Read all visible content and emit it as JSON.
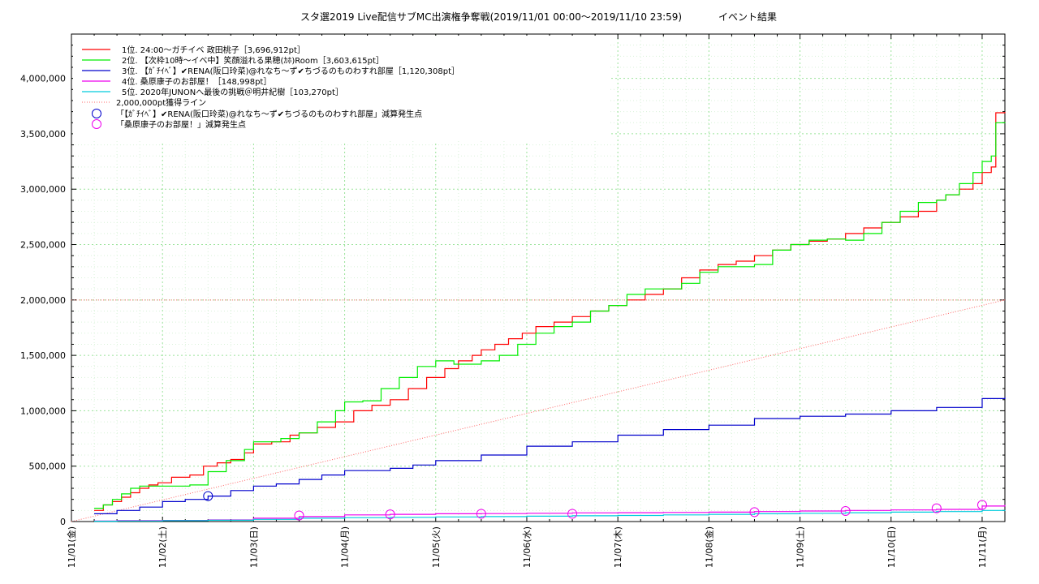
{
  "chart_data": {
    "type": "line",
    "title": "スタ選2019 Live配信サブMC出演権争奪戦(2019/11/01 00:00～2019/11/10 23:59)",
    "subtitle": "イベント結果",
    "x_tick_labels": [
      "11/01(金)",
      "11/02(土)",
      "11/03(日)",
      "11/04(月)",
      "11/05(火)",
      "11/06(水)",
      "11/07(木)",
      "11/08(金)",
      "11/09(土)",
      "11/10(日)",
      "11/11(月)"
    ],
    "xlim": [
      0,
      10.25
    ],
    "ylim": [
      0,
      4400000
    ],
    "y_ticks": [
      0,
      500000,
      1000000,
      1500000,
      2000000,
      2500000,
      3000000,
      3500000,
      4000000
    ],
    "y_tick_labels": [
      "0",
      "500,000",
      "1,000,000",
      "1,500,000",
      "2,000,000",
      "2,500,000",
      "3,000,000",
      "3,500,000",
      "4,000,000"
    ],
    "grid": true,
    "legend_position": "top-left",
    "series": [
      {
        "name": "1位. 24:00～ガチイベ 政田桃子［3,696,912pt］",
        "color": "#ff0000",
        "x": [
          0.25,
          0.35,
          0.45,
          0.55,
          0.65,
          0.75,
          0.85,
          0.95,
          1.1,
          1.3,
          1.45,
          1.6,
          1.75,
          1.9,
          2.0,
          2.2,
          2.4,
          2.5,
          2.7,
          2.9,
          3.1,
          3.3,
          3.5,
          3.7,
          3.9,
          4.1,
          4.25,
          4.4,
          4.5,
          4.65,
          4.8,
          4.95,
          5.1,
          5.3,
          5.5,
          5.7,
          5.9,
          6.1,
          6.3,
          6.5,
          6.7,
          6.9,
          7.1,
          7.3,
          7.5,
          7.7,
          7.9,
          8.1,
          8.3,
          8.5,
          8.7,
          8.9,
          9.1,
          9.3,
          9.5,
          9.6,
          9.75,
          9.9,
          10.0,
          10.1,
          10.15,
          10.25
        ],
        "y": [
          100000,
          150000,
          180000,
          220000,
          260000,
          300000,
          330000,
          350000,
          400000,
          420000,
          500000,
          530000,
          560000,
          620000,
          700000,
          720000,
          780000,
          800000,
          850000,
          900000,
          1000000,
          1050000,
          1100000,
          1200000,
          1300000,
          1380000,
          1450000,
          1500000,
          1550000,
          1600000,
          1650000,
          1700000,
          1760000,
          1800000,
          1850000,
          1900000,
          1950000,
          2000000,
          2050000,
          2100000,
          2200000,
          2270000,
          2320000,
          2350000,
          2400000,
          2450000,
          2500000,
          2530000,
          2550000,
          2600000,
          2650000,
          2700000,
          2750000,
          2800000,
          2900000,
          2950000,
          3000000,
          3050000,
          3150000,
          3200000,
          3690000,
          3696912
        ]
      },
      {
        "name": "2位. 【次枠10時～イベ中】笑顔溢れる果穂(ｶﾎ)Room［3,603,615pt］",
        "color": "#00ee00",
        "x": [
          0.25,
          0.35,
          0.45,
          0.55,
          0.65,
          0.75,
          0.85,
          1.0,
          1.3,
          1.5,
          1.7,
          1.9,
          2.0,
          2.3,
          2.5,
          2.7,
          2.9,
          3.0,
          3.2,
          3.4,
          3.6,
          3.8,
          4.0,
          4.2,
          4.5,
          4.7,
          4.9,
          5.1,
          5.3,
          5.5,
          5.7,
          5.9,
          6.1,
          6.3,
          6.5,
          6.7,
          6.9,
          7.1,
          7.3,
          7.5,
          7.7,
          7.9,
          8.1,
          8.3,
          8.5,
          8.7,
          8.9,
          9.1,
          9.3,
          9.5,
          9.6,
          9.75,
          9.9,
          10.0,
          10.1,
          10.15,
          10.25
        ],
        "y": [
          120000,
          150000,
          200000,
          250000,
          300000,
          320000,
          320000,
          320000,
          330000,
          450000,
          550000,
          650000,
          720000,
          750000,
          800000,
          900000,
          1000000,
          1080000,
          1090000,
          1200000,
          1300000,
          1400000,
          1450000,
          1420000,
          1450000,
          1500000,
          1600000,
          1700000,
          1760000,
          1800000,
          1900000,
          1950000,
          2050000,
          2100000,
          2100000,
          2150000,
          2250000,
          2300000,
          2300000,
          2320000,
          2450000,
          2500000,
          2540000,
          2550000,
          2540000,
          2600000,
          2700000,
          2800000,
          2880000,
          2900000,
          2950000,
          3050000,
          3150000,
          3250000,
          3300000,
          3600000,
          3603615
        ]
      },
      {
        "name": "3位. 【ｶﾞﾁｲﾍﾞ】✔RENA(阪口玲菜)@れなち～ず✔ちづるのものわすれ部屋［1,120,308pt］",
        "color": "#0000cc",
        "x": [
          0.25,
          0.5,
          0.75,
          1.0,
          1.25,
          1.5,
          1.75,
          2.0,
          2.25,
          2.5,
          2.75,
          3.0,
          3.5,
          3.75,
          4.0,
          4.5,
          5.0,
          5.5,
          6.0,
          6.5,
          7.0,
          7.5,
          8.0,
          8.5,
          9.0,
          9.5,
          10.0,
          10.25
        ],
        "y": [
          70000,
          100000,
          130000,
          180000,
          200000,
          230000,
          280000,
          320000,
          340000,
          380000,
          420000,
          460000,
          480000,
          510000,
          550000,
          600000,
          680000,
          720000,
          780000,
          830000,
          870000,
          930000,
          950000,
          970000,
          1000000,
          1030000,
          1110000,
          1120308
        ]
      },
      {
        "name": "4位. 桑原康子のお部屋！［148,998pt］",
        "color": "#ee00ee",
        "x": [
          0.25,
          0.5,
          1.0,
          1.5,
          2.0,
          2.5,
          3.0,
          3.5,
          4.0,
          4.5,
          5.0,
          5.5,
          6.0,
          6.5,
          7.0,
          7.5,
          8.0,
          8.5,
          9.0,
          9.5,
          10.0,
          10.25
        ],
        "y": [
          5000,
          8000,
          10000,
          15000,
          30000,
          45000,
          60000,
          65000,
          70000,
          72000,
          75000,
          78000,
          80000,
          82000,
          85000,
          90000,
          95000,
          100000,
          105000,
          110000,
          140000,
          148998
        ]
      },
      {
        "name": "5位. 2020年JUNONへ最後の挑戦＠明井紀樹［103,270pt］",
        "color": "#00ccdd",
        "x": [
          0.25,
          0.5,
          1.0,
          1.5,
          2.0,
          2.5,
          3.0,
          3.5,
          4.0,
          4.5,
          5.0,
          5.5,
          6.0,
          6.5,
          7.0,
          7.5,
          8.0,
          8.5,
          9.0,
          9.5,
          10.0,
          10.25
        ],
        "y": [
          3000,
          5000,
          8000,
          12000,
          20000,
          30000,
          35000,
          38000,
          42000,
          45000,
          48000,
          52000,
          55000,
          60000,
          65000,
          70000,
          75000,
          80000,
          85000,
          90000,
          100000,
          103270
        ]
      }
    ],
    "reference_line": {
      "name": "2,000,000pt獲得ライン",
      "color": "#ff6666",
      "y_value": 2000000
    },
    "markers": [
      {
        "name": "「【ｶﾞﾁｲﾍﾞ】✔RENA(阪口玲菜)@れなち～ず✔ちづるのものわすれ部屋」減算発生点",
        "color": "#0000cc",
        "points": [
          {
            "x": 1.5,
            "y": 230000
          }
        ]
      },
      {
        "name": "「桑原康子のお部屋！」減算発生点",
        "color": "#ee00ee",
        "points": [
          {
            "x": 2.5,
            "y": 55000
          },
          {
            "x": 3.5,
            "y": 65000
          },
          {
            "x": 4.5,
            "y": 70000
          },
          {
            "x": 5.5,
            "y": 70000
          },
          {
            "x": 7.5,
            "y": 85000
          },
          {
            "x": 8.5,
            "y": 95000
          },
          {
            "x": 9.5,
            "y": 120000
          },
          {
            "x": 10.0,
            "y": 150000
          }
        ]
      }
    ]
  }
}
